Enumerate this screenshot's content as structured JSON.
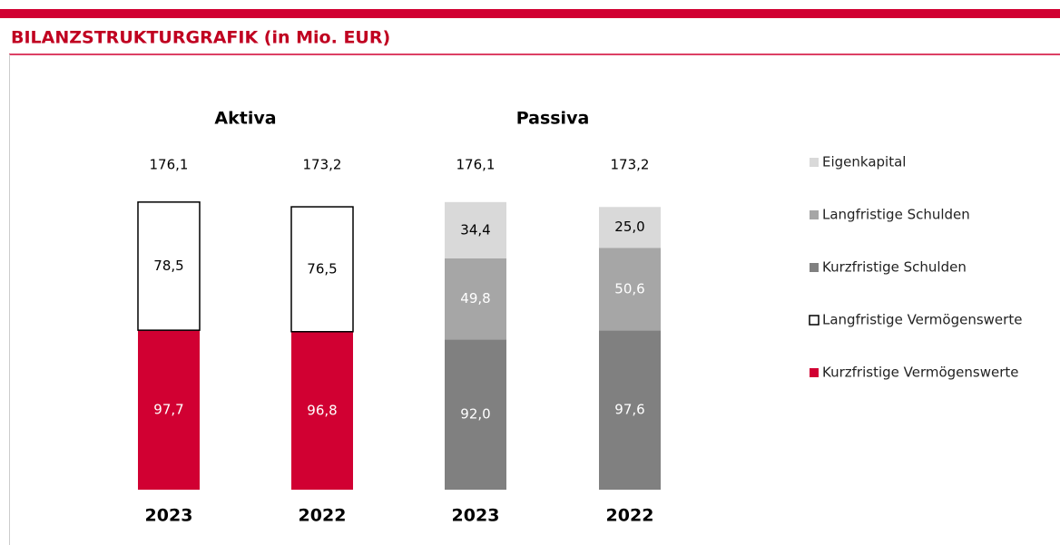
{
  "chart_data": {
    "type": "stacked_bar",
    "title": "BILANZSTRUKTURGRAFIK (in Mio. EUR)",
    "group_labels": [
      "Aktiva",
      "Passiva"
    ],
    "categories": [
      "2023",
      "2022",
      "2023",
      "2022"
    ],
    "totals": [
      176.1,
      173.2,
      176.1,
      173.2
    ],
    "total_labels": [
      "176,1",
      "173,2",
      "176,1",
      "173,2"
    ],
    "series": [
      {
        "name": "Eigenkapital",
        "color": "#d9d9d9",
        "values": [
          null,
          null,
          34.4,
          25.0
        ],
        "value_labels": [
          null,
          null,
          "34,4",
          "25,0"
        ]
      },
      {
        "name": "Langfristige Schulden",
        "color": "#a6a6a6",
        "values": [
          null,
          null,
          49.8,
          50.6
        ],
        "value_labels": [
          null,
          null,
          "49,8",
          "50,6"
        ]
      },
      {
        "name": "Kurzfristige Schulden",
        "color": "#808080",
        "values": [
          null,
          null,
          92.0,
          97.6
        ],
        "value_labels": [
          null,
          null,
          "92,0",
          "97,6"
        ]
      },
      {
        "name": "Langfristige Vermögenswerte",
        "color": "#ffffff",
        "values": [
          78.5,
          76.5,
          null,
          null
        ],
        "value_labels": [
          "78,5",
          "76,5",
          null,
          null
        ]
      },
      {
        "name": "Kurzfristige Vermögenswerte",
        "color": "#d10032",
        "values": [
          97.7,
          96.8,
          null,
          null
        ],
        "value_labels": [
          "97,7",
          "96,8",
          null,
          null
        ]
      }
    ]
  }
}
